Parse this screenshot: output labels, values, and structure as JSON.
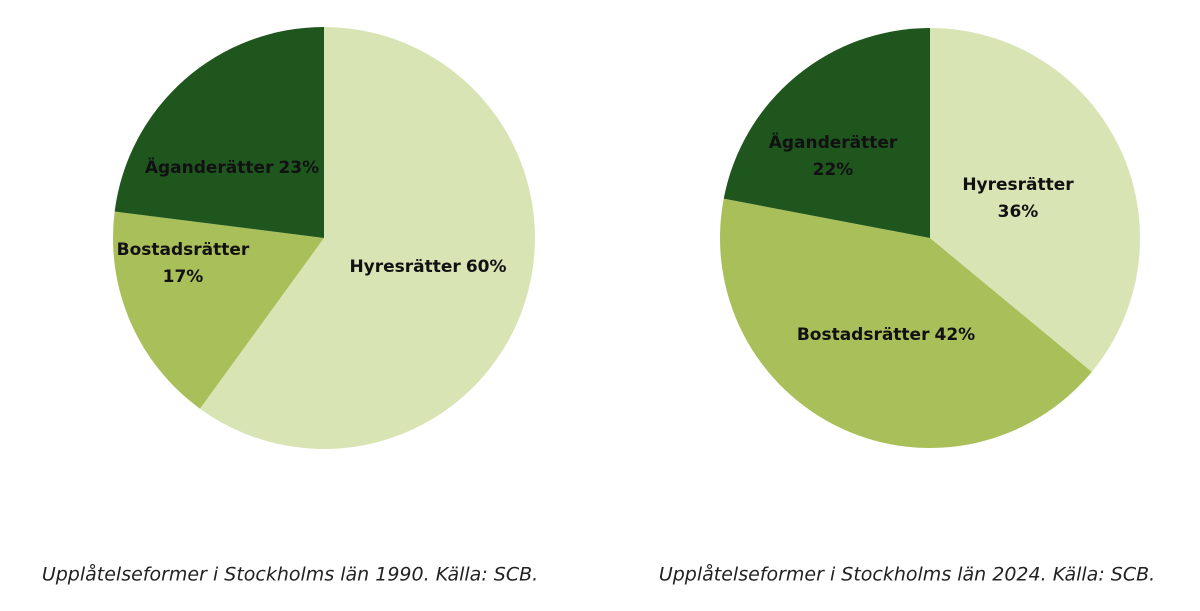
{
  "chart_data": [
    {
      "type": "pie",
      "caption": "Upplåtelseformer i Stockholms län 1990. Källa: SCB.",
      "categories": [
        "Hyresrätter",
        "Bostadsrätter",
        "Äganderätter"
      ],
      "values": [
        60,
        17,
        23
      ],
      "value_labels": [
        "60%",
        "17%",
        "23%"
      ],
      "colors": [
        "#d9e4b4",
        "#a9c05a",
        "#1e561d"
      ]
    },
    {
      "type": "pie",
      "caption": "Upplåtelseformer i Stockholms län 2024. Källa: SCB.",
      "categories": [
        "Hyresrätter",
        "Bostadsrätter",
        "Äganderätter"
      ],
      "values": [
        36,
        42,
        22
      ],
      "value_labels": [
        "36%",
        "42%",
        "22%"
      ],
      "colors": [
        "#d9e4b4",
        "#a9c05a",
        "#1e561d"
      ]
    }
  ]
}
